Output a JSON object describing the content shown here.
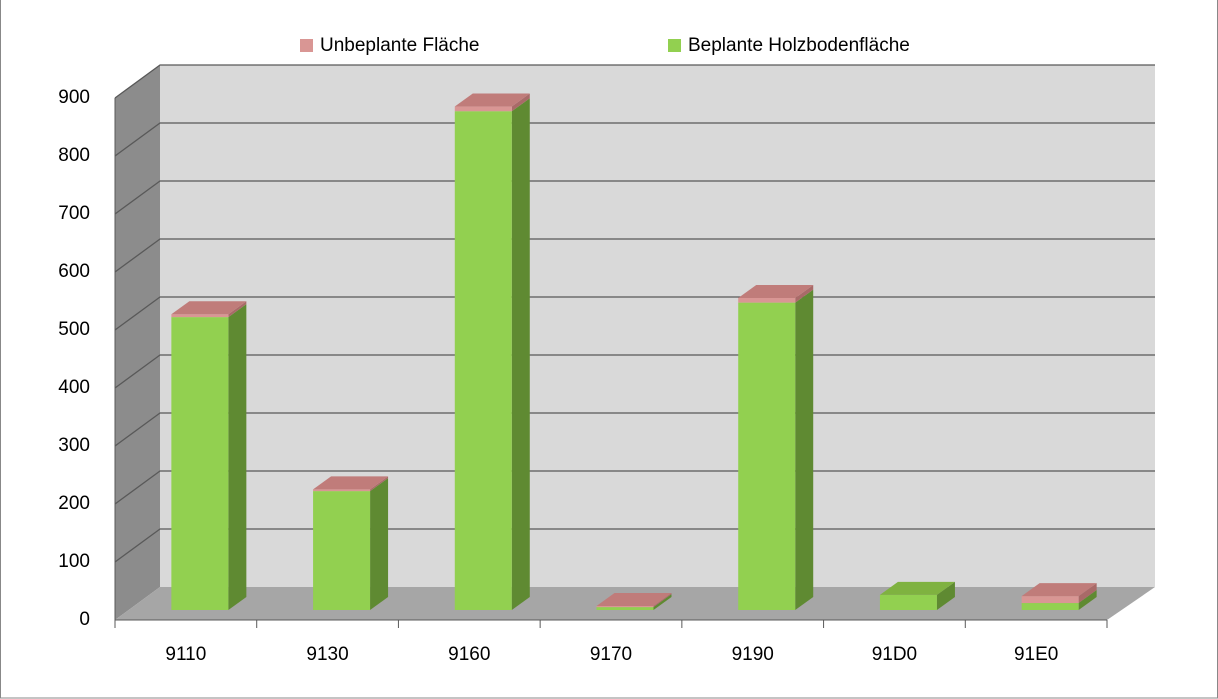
{
  "chart_data": {
    "type": "bar3d_stacked",
    "categories": [
      "9110",
      "9130",
      "9160",
      "9170",
      "9190",
      "91D0",
      "91E0"
    ],
    "series": [
      {
        "name": "Beplante Holzbodenfläche",
        "color": "#92d050",
        "side": "#5f8a32",
        "top": "#7fb240",
        "values": [
          505,
          205,
          860,
          5,
          530,
          26,
          12
        ]
      },
      {
        "name": "Unbeplante Fläche",
        "color": "#d99694",
        "side": "#a96a68",
        "top": "#c07c7a",
        "values": [
          5,
          3,
          8,
          2,
          8,
          0,
          12
        ]
      }
    ],
    "legend_order": [
      1,
      0
    ],
    "ylim": [
      0,
      900
    ],
    "yticks": [
      0,
      100,
      200,
      300,
      400,
      500,
      600,
      700,
      800,
      900
    ],
    "grid": true
  }
}
